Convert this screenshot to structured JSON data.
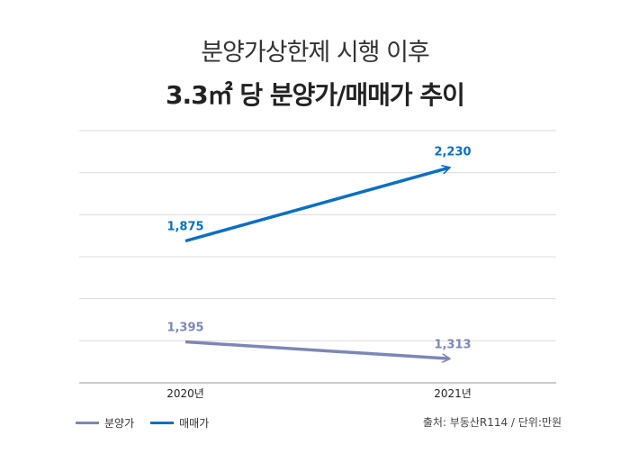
{
  "title_line1": "분양가상한제 시행 이후",
  "title_line2": "3.3㎡ 당 분양가/매매가 추이",
  "source": "출처: 부동산R114 / 단위:만원",
  "chart_data": {
    "type": "line",
    "x": [
      "2020년",
      "2021년"
    ],
    "ylim": [
      1200,
      2400
    ],
    "grid": true,
    "legend_placement": "bottom-left",
    "series": [
      {
        "name": "분양가",
        "values": [
          1395,
          1313
        ],
        "labels": [
          "1,395",
          "1,313"
        ],
        "color": "#7b87b8"
      },
      {
        "name": "매매가",
        "values": [
          1875,
          2230
        ],
        "labels": [
          "1,875",
          "2,230"
        ],
        "color": "#0a6fc2"
      }
    ]
  }
}
